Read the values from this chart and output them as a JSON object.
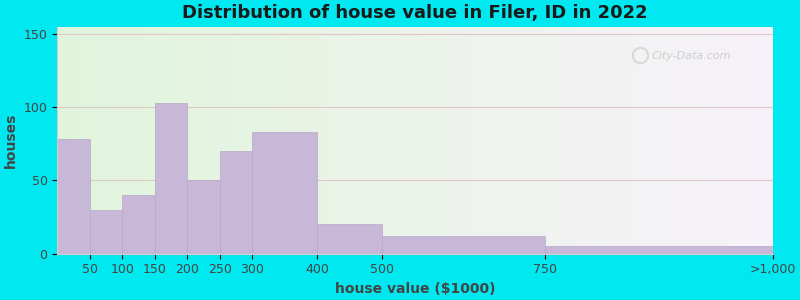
{
  "title": "Distribution of house value in Filer, ID in 2022",
  "xlabel": "house value ($1000)",
  "ylabel": "houses",
  "bin_edges": [
    0,
    50,
    100,
    150,
    200,
    250,
    300,
    400,
    500,
    750,
    1100
  ],
  "tick_positions": [
    50,
    100,
    150,
    200,
    250,
    300,
    400,
    500,
    750,
    1100
  ],
  "tick_labels": [
    "50",
    "100",
    "150",
    "200",
    "250",
    "300",
    "400",
    "500",
    "750",
    ">1,000"
  ],
  "bar_values": [
    78,
    30,
    40,
    103,
    50,
    70,
    83,
    20,
    12,
    5
  ],
  "bar_color": "#c8b8d8",
  "bar_edge_color": "#b8a8c8",
  "yticks": [
    0,
    50,
    100,
    150
  ],
  "ylim": [
    0,
    155
  ],
  "xlim": [
    0,
    1100
  ],
  "title_fontsize": 13,
  "label_fontsize": 10,
  "tick_fontsize": 9,
  "background_outer": "#00e8f0",
  "watermark": "City-Data.com",
  "grid_color": "#e0c8c8",
  "title_color": "#1a1a1a",
  "axis_label_color": "#444444",
  "grad_tl": [
    0.88,
    0.96,
    0.86
  ],
  "grad_tr": [
    0.97,
    0.95,
    0.98
  ],
  "grad_bl": [
    0.88,
    0.96,
    0.86
  ],
  "grad_br": [
    0.97,
    0.95,
    0.98
  ]
}
